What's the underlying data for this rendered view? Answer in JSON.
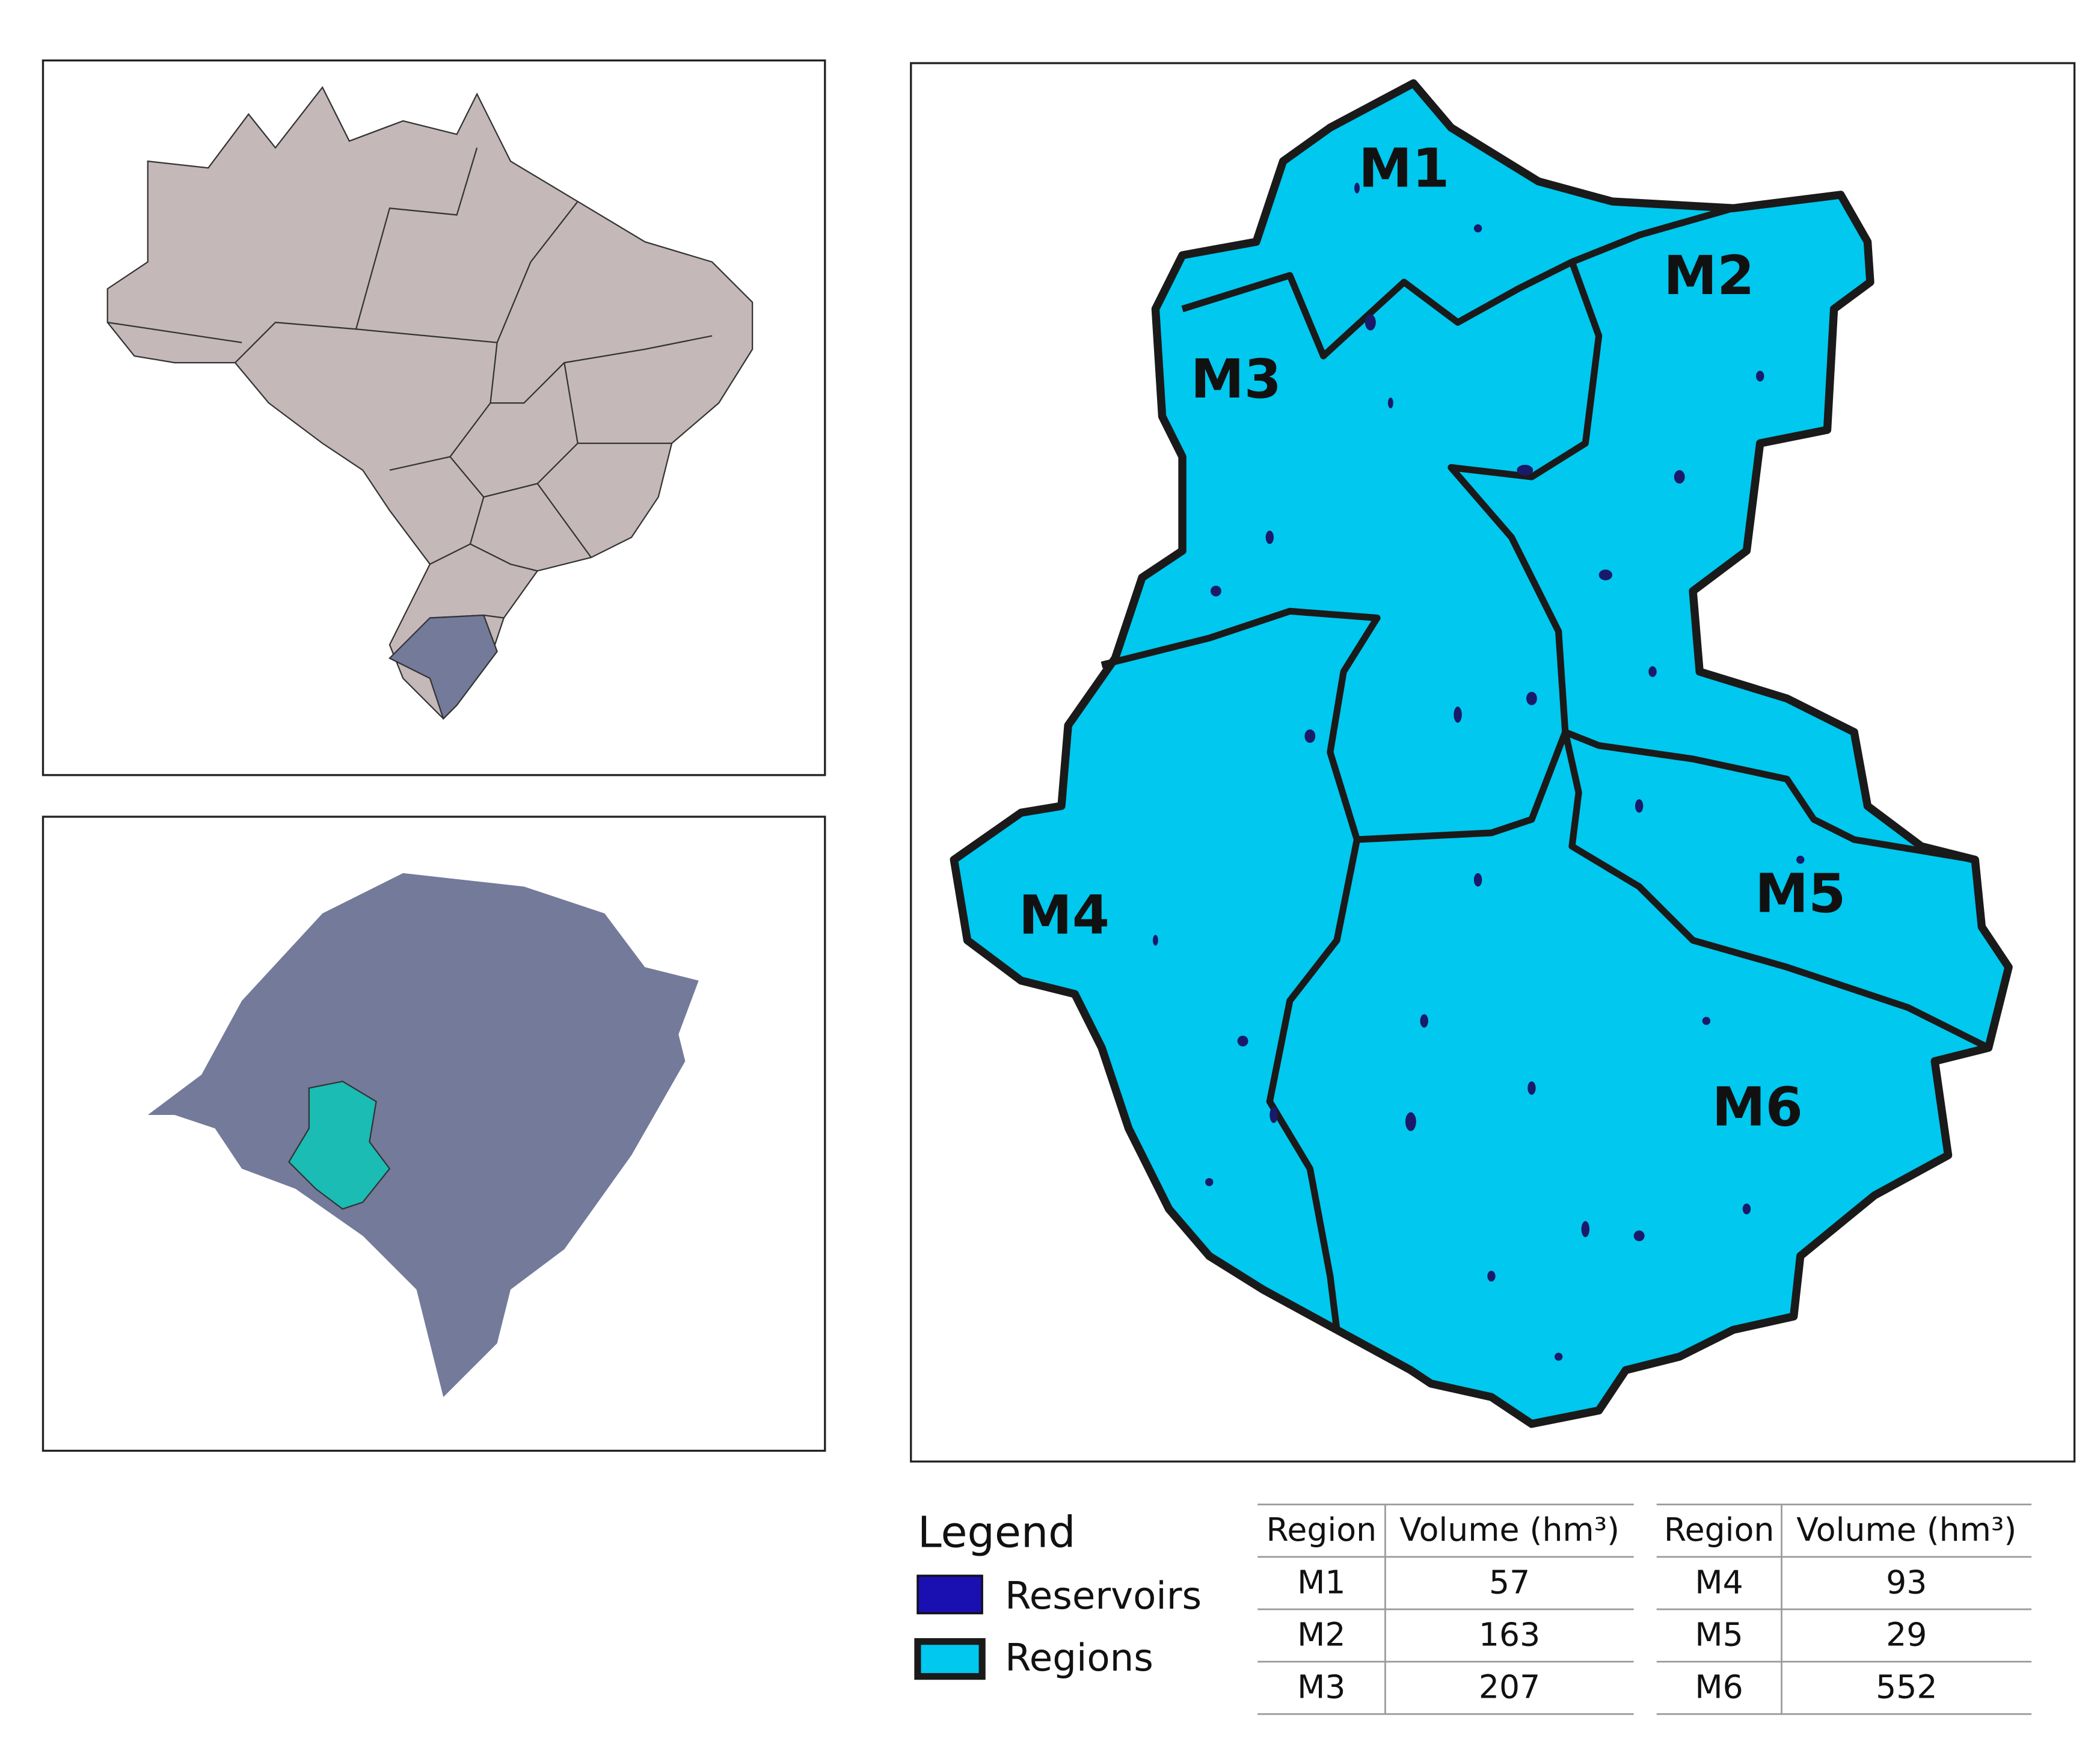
{
  "map": {
    "labels": [
      "M1",
      "M2",
      "M3",
      "M4",
      "M5",
      "M6"
    ]
  },
  "legend": {
    "title": "Legend",
    "items": [
      "Reservoirs",
      "Regions"
    ]
  },
  "tables": [
    {
      "header": [
        "Region",
        "Volume (hm³)"
      ],
      "rows": [
        [
          "M1",
          "57"
        ],
        [
          "M2",
          "163"
        ],
        [
          "M3",
          "207"
        ]
      ]
    },
    {
      "header": [
        "Region",
        "Volume (hm³)"
      ],
      "rows": [
        [
          "M4",
          "93"
        ],
        [
          "M5",
          "29"
        ],
        [
          "M6",
          "552"
        ]
      ]
    }
  ]
}
